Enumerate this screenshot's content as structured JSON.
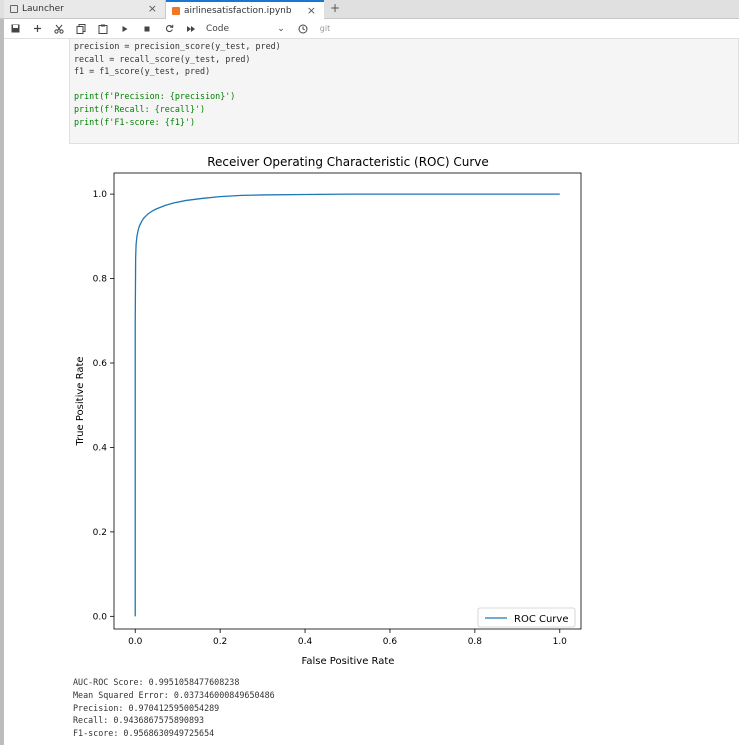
{
  "tabs": [
    {
      "label": "Launcher",
      "close": "×"
    },
    {
      "label": "airlinesatisfaction.ipynb",
      "close": "×"
    }
  ],
  "new_tab": "+",
  "toolbar": {
    "cell_type": "Code",
    "chevron": "⌄",
    "git": "git"
  },
  "code_lines": [
    "precision = precision_score(y_test, pred)",
    "recall = recall_score(y_test, pred)",
    "f1 = f1_score(y_test, pred)",
    "",
    "print(f'Precision: {precision}')",
    "print(f'Recall: {recall}')",
    "print(f'F1-score: {f1}')"
  ],
  "chart_data": {
    "type": "line",
    "title": "Receiver Operating Characteristic (ROC) Curve",
    "xlabel": "False Positive Rate",
    "ylabel": "True Positive Rate",
    "xlim": [
      -0.05,
      1.05
    ],
    "ylim": [
      -0.03,
      1.05
    ],
    "xticks": [
      "0.0",
      "0.2",
      "0.4",
      "0.6",
      "0.8",
      "1.0"
    ],
    "yticks": [
      "0.0",
      "0.2",
      "0.4",
      "0.6",
      "0.8",
      "1.0"
    ],
    "legend": "lower-right",
    "color": "#1f77b4",
    "series": [
      {
        "name": "ROC Curve",
        "x": [
          0.0,
          0.0,
          0.001,
          0.002,
          0.004,
          0.007,
          0.01,
          0.015,
          0.02,
          0.03,
          0.04,
          0.05,
          0.07,
          0.09,
          0.12,
          0.16,
          0.2,
          0.25,
          0.3,
          0.4,
          0.5,
          0.7,
          1.0
        ],
        "y": [
          0.0,
          0.7,
          0.85,
          0.88,
          0.9,
          0.915,
          0.925,
          0.935,
          0.943,
          0.953,
          0.96,
          0.965,
          0.973,
          0.979,
          0.985,
          0.99,
          0.994,
          0.997,
          0.998,
          0.999,
          1.0,
          1.0,
          1.0
        ]
      }
    ]
  },
  "output_lines": [
    "AUC-ROC Score: 0.9951058477608238",
    "Mean Squared Error: 0.037346000849650486",
    "Precision: 0.9704125950054289",
    "Recall: 0.9436867575890893",
    "F1-score: 0.9568630949725654"
  ]
}
